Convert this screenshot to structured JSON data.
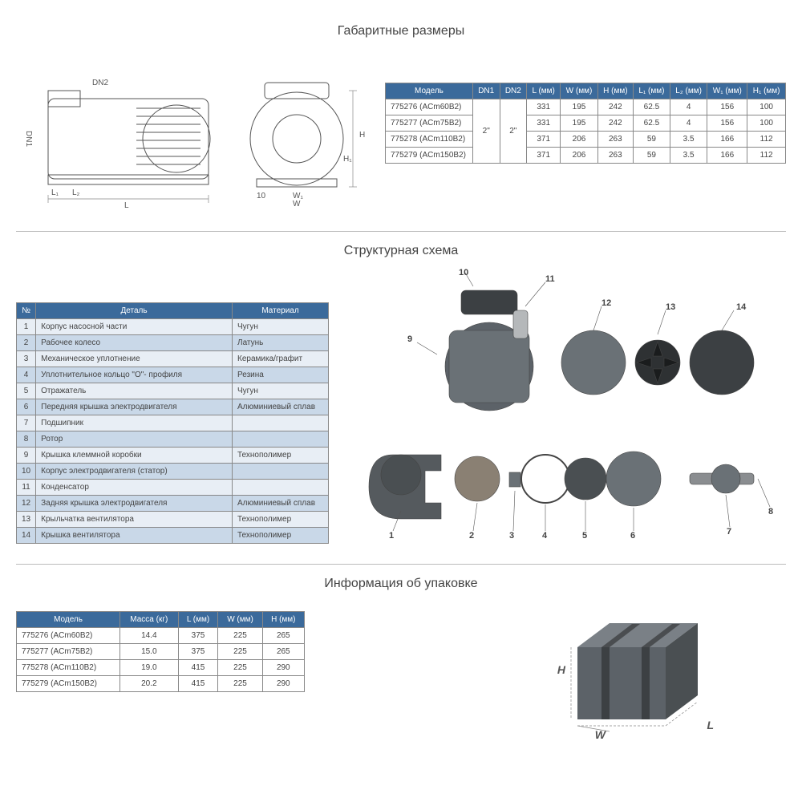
{
  "section1": {
    "title": "Габаритные размеры",
    "drawing_labels": {
      "dn2": "DN2",
      "dn1": "DN1",
      "l1": "L₁",
      "l2": "L₂",
      "l": "L",
      "h": "H",
      "h1": "H₁",
      "w": "W",
      "w1": "W₁",
      "ten": "10"
    },
    "table": {
      "headers": [
        "Модель",
        "DN1",
        "DN2",
        "L (мм)",
        "W (мм)",
        "H (мм)",
        "L₁ (мм)",
        "L₂ (мм)",
        "W₁ (мм)",
        "H₁ (мм)"
      ],
      "dn1": "2\"",
      "dn2": "2\"",
      "rows": [
        {
          "model": "775276 (ACm60B2)",
          "l": "331",
          "w": "195",
          "h": "242",
          "l1": "62.5",
          "l2": "4",
          "w1": "156",
          "h1": "100"
        },
        {
          "model": "775277 (ACm75B2)",
          "l": "331",
          "w": "195",
          "h": "242",
          "l1": "62.5",
          "l2": "4",
          "w1": "156",
          "h1": "100"
        },
        {
          "model": "775278 (ACm110B2)",
          "l": "371",
          "w": "206",
          "h": "263",
          "l1": "59",
          "l2": "3.5",
          "w1": "166",
          "h1": "112"
        },
        {
          "model": "775279 (ACm150B2)",
          "l": "371",
          "w": "206",
          "h": "263",
          "l1": "59",
          "l2": "3.5",
          "w1": "166",
          "h1": "112"
        }
      ]
    }
  },
  "section2": {
    "title": "Структурная схема",
    "headers": [
      "№",
      "Деталь",
      "Материал"
    ],
    "rows": [
      {
        "n": "1",
        "part": "Корпус насосной части",
        "mat": "Чугун"
      },
      {
        "n": "2",
        "part": "Рабочее колесо",
        "mat": "Латунь"
      },
      {
        "n": "3",
        "part": "Механическое уплотнение",
        "mat": "Керамика/графит"
      },
      {
        "n": "4",
        "part": "Уплотнительное кольцо \"О\"- профиля",
        "mat": "Резина"
      },
      {
        "n": "5",
        "part": "Отражатель",
        "mat": "Чугун"
      },
      {
        "n": "6",
        "part": "Передняя крышка электродвигателя",
        "mat": "Алюминиевый сплав"
      },
      {
        "n": "7",
        "part": "Подшипник",
        "mat": ""
      },
      {
        "n": "8",
        "part": "Ротор",
        "mat": ""
      },
      {
        "n": "9",
        "part": "Крышка клеммной коробки",
        "mat": "Технополимер"
      },
      {
        "n": "10",
        "part": "Корпус электродвигателя (статор)",
        "mat": ""
      },
      {
        "n": "11",
        "part": "Конденсатор",
        "mat": ""
      },
      {
        "n": "12",
        "part": "Задняя крышка электродвигателя",
        "mat": "Алюминиевый сплав"
      },
      {
        "n": "13",
        "part": "Крыльчатка вентилятора",
        "mat": "Технополимер"
      },
      {
        "n": "14",
        "part": "Крышка вентилятора",
        "mat": "Технополимер"
      }
    ],
    "callouts": [
      "1",
      "2",
      "3",
      "4",
      "5",
      "6",
      "7",
      "8",
      "9",
      "10",
      "11",
      "12",
      "13",
      "14"
    ]
  },
  "section3": {
    "title": "Информация об упаковке",
    "headers": [
      "Модель",
      "Масса (кг)",
      "L (мм)",
      "W (мм)",
      "H (мм)"
    ],
    "rows": [
      {
        "model": "775276 (ACm60B2)",
        "mass": "14.4",
        "l": "375",
        "w": "225",
        "h": "265"
      },
      {
        "model": "775277 (ACm75B2)",
        "mass": "15.0",
        "l": "375",
        "w": "225",
        "h": "265"
      },
      {
        "model": "775278 (ACm110B2)",
        "mass": "19.0",
        "l": "415",
        "w": "225",
        "h": "290"
      },
      {
        "model": "775279 (ACm150B2)",
        "mass": "20.2",
        "l": "415",
        "w": "225",
        "h": "290"
      }
    ],
    "box_labels": {
      "h": "H",
      "w": "W",
      "l": "L"
    }
  },
  "colors": {
    "header_bg": "#3b6a9b",
    "row_odd": "#e8eef5",
    "row_even": "#c9d8e8",
    "border": "#888888",
    "text": "#444444"
  }
}
